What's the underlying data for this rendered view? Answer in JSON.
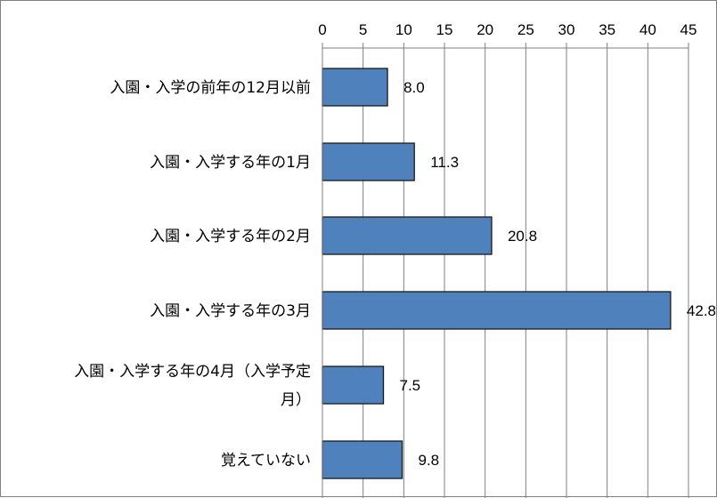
{
  "chart_data": {
    "type": "bar",
    "orientation": "horizontal",
    "categories": [
      [
        "入園・入学の前年の12月以前"
      ],
      [
        "入園・入学する年の1月"
      ],
      [
        "入園・入学する年の2月"
      ],
      [
        "入園・入学する年の3月"
      ],
      [
        "入園・入学する年の4月（入学予定",
        "月）"
      ],
      [
        "覚えていない"
      ]
    ],
    "values": [
      8.0,
      11.3,
      20.8,
      42.8,
      7.5,
      9.8
    ],
    "value_labels": [
      "8.0",
      "11.3",
      "20.8",
      "42.8",
      "7.5",
      "9.8"
    ],
    "xlim": [
      0,
      45
    ],
    "xticks": [
      0,
      5,
      10,
      15,
      20,
      25,
      30,
      35,
      40,
      45
    ],
    "axis_position": "top",
    "grid": true,
    "title": "",
    "xlabel": "",
    "ylabel": "",
    "colors": {
      "bar": "#4f81bd",
      "bar_edge": "#1a1a1a",
      "grid": "#7f7f7f"
    }
  }
}
